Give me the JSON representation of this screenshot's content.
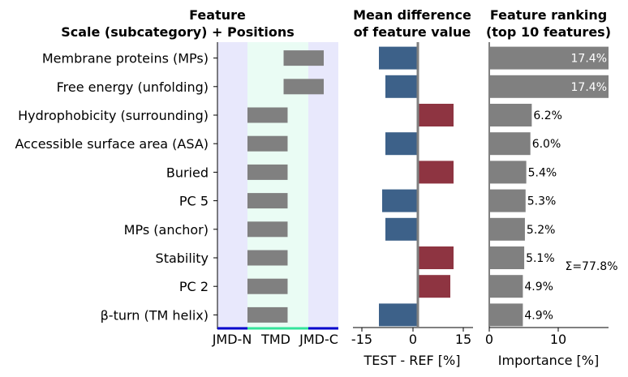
{
  "chart_data": [
    {
      "type": "heatmap",
      "title_line1": "Feature",
      "title_line2": "Scale (subcategory)  +  Positions",
      "features": [
        "Membrane proteins (MPs)",
        "Free energy (unfolding)",
        "Hydrophobicity (surrounding)",
        "Accessible surface area (ASA)",
        "Buried",
        "PC 5",
        "MPs (anchor)",
        "Stability",
        "PC 2",
        "β-turn (TM helix)"
      ],
      "position_labels": [
        "JMD-N",
        "TMD",
        "JMD-C"
      ],
      "position_spans": [
        {
          "start": 10,
          "end": 20
        },
        {
          "start": 10,
          "end": 20
        },
        {
          "start": 1,
          "end": 11
        },
        {
          "start": 1,
          "end": 11
        },
        {
          "start": 1,
          "end": 11
        },
        {
          "start": 1,
          "end": 11
        },
        {
          "start": 1,
          "end": 11
        },
        {
          "start": 1,
          "end": 11
        },
        {
          "start": 1,
          "end": 11
        },
        {
          "start": 1,
          "end": 11
        }
      ],
      "position_max": 20,
      "colors": {
        "jmd_bg": "#e8e8fc",
        "tmd_bg": "#eafcf4",
        "bar": "#808080",
        "jmd_line": "#0000cc",
        "tmd_line": "#33e39a"
      }
    },
    {
      "type": "bar",
      "title_line1": "Mean difference",
      "title_line2": "of feature value",
      "xlabel": "TEST - REF [%]",
      "values": [
        -12,
        -10,
        11,
        -10,
        11,
        -11,
        -10,
        11,
        10,
        -12
      ],
      "xlim": [
        -20,
        17
      ],
      "xticks": [
        -15,
        0,
        15
      ],
      "colors": {
        "negative": "#3d6189",
        "positive": "#8e3441",
        "zero_line": "#808080"
      }
    },
    {
      "type": "bar",
      "title_line1": "Feature ranking",
      "title_line2": "(top 10 features)",
      "xlabel": "Importance [%]",
      "values": [
        17.4,
        17.4,
        6.2,
        6.0,
        5.4,
        5.3,
        5.2,
        5.1,
        4.9,
        4.9
      ],
      "value_labels": [
        "17.4%",
        "17.4%",
        "6.2%",
        "6.0%",
        "5.4%",
        "5.3%",
        "5.2%",
        "5.1%",
        "4.9%",
        "4.9%"
      ],
      "sum_label": "Σ=77.8%",
      "xlim": [
        0,
        17.4
      ],
      "xticks": [
        0,
        10
      ],
      "colors": {
        "bar": "#808080"
      }
    }
  ]
}
